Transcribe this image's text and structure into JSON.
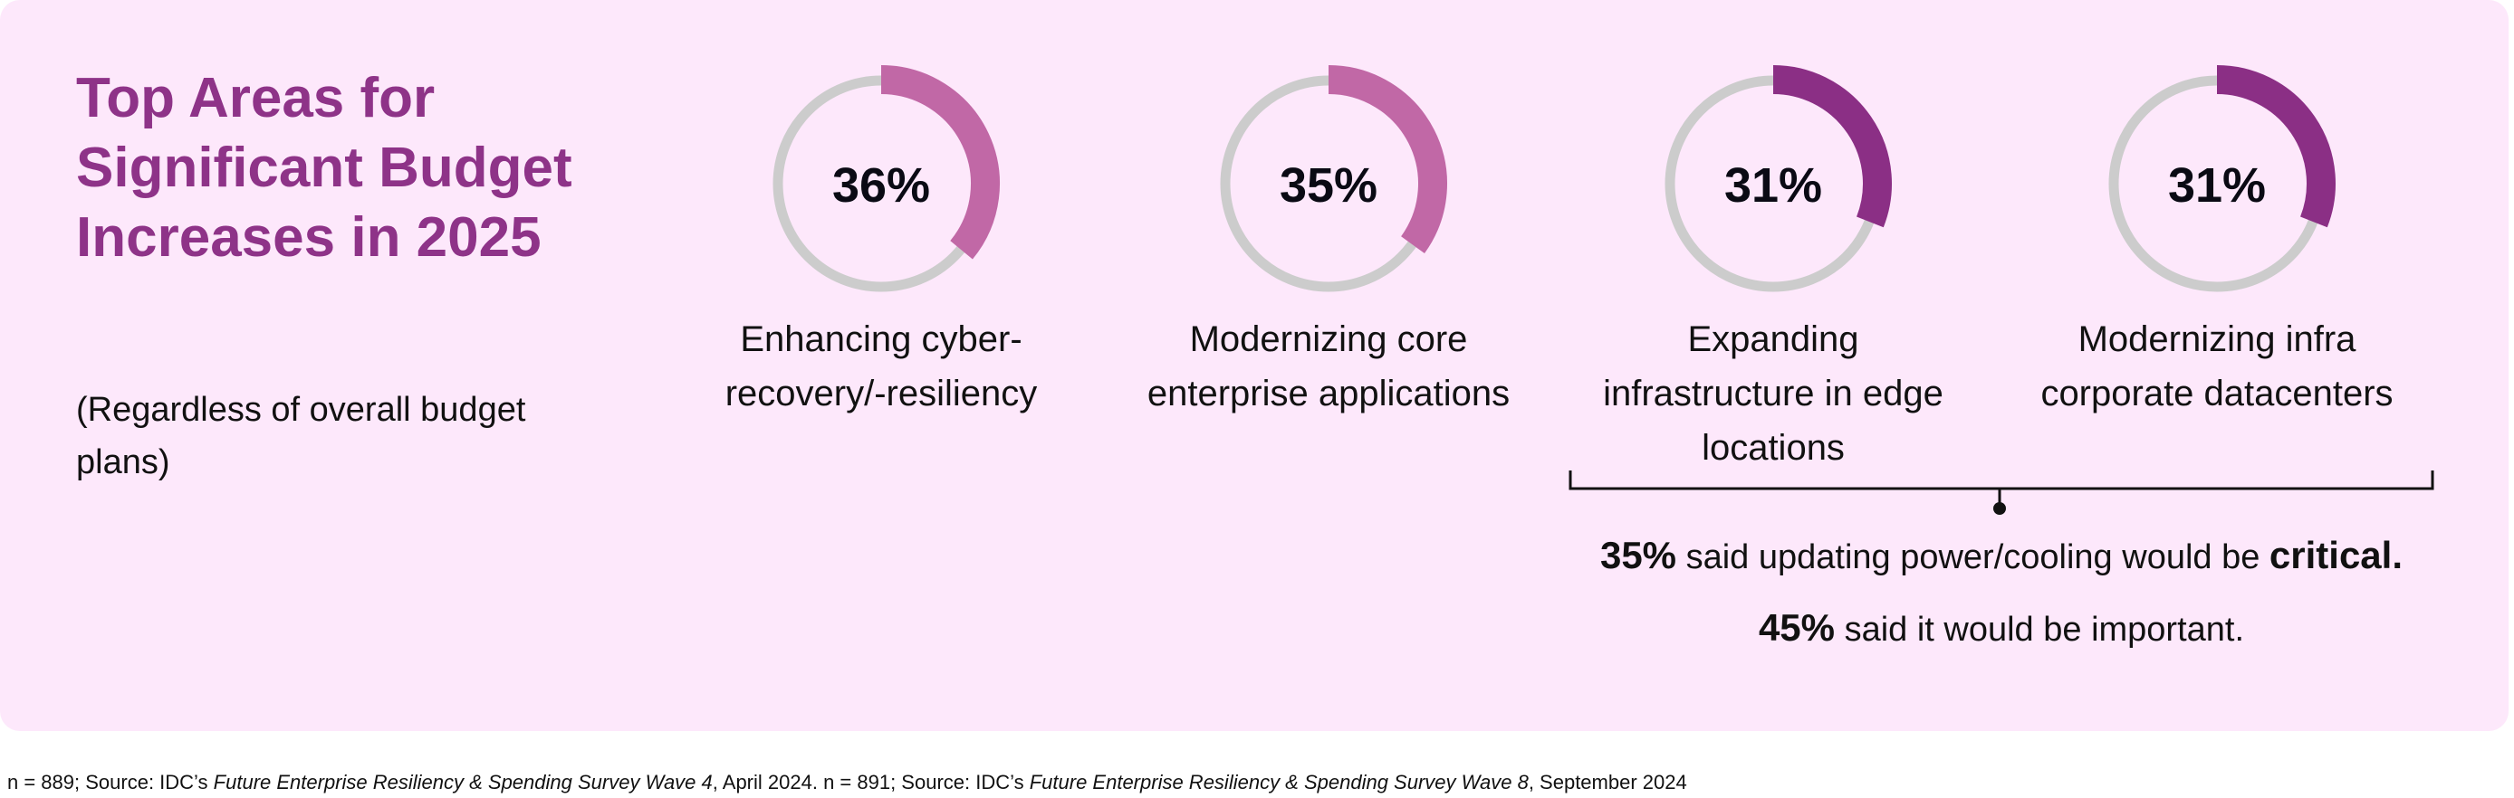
{
  "title": "Top Areas for Significant Budget Increases in 2025",
  "subtitle": "(Regardless of overall budget plans)",
  "colors": {
    "background": "#fde8fb",
    "title": "#8e3388",
    "track": "#cccccc",
    "light_arc": "#c168a6",
    "dark_arc": "#8b2f85"
  },
  "chart_data": {
    "type": "pie",
    "style": "donut-progress",
    "items": [
      {
        "value": 36,
        "display": "36%",
        "label": "Enhancing cyber-recovery/-resiliency",
        "color": "#c168a6"
      },
      {
        "value": 35,
        "display": "35%",
        "label": "Modernizing core enterprise applications",
        "color": "#c168a6"
      },
      {
        "value": 31,
        "display": "31%",
        "label": "Expanding infrastructure in edge locations",
        "color": "#8b2f85"
      },
      {
        "value": 31,
        "display": "31%",
        "label": "Modernizing infra corporate datacenters",
        "color": "#8b2f85"
      }
    ]
  },
  "note": {
    "line1_value": "35%",
    "line1_text": " said updating power/cooling would be ",
    "line1_emph": "critical.",
    "line2_value": "45%",
    "line2_text": " said it would be important."
  },
  "footer": {
    "p1": "n = 889; Source: IDC’s ",
    "p1_italic": "Future Enterprise Resiliency & Spending Survey Wave 4",
    "p2": ", April 2024. n = 891; Source: IDC’s ",
    "p2_italic": "Future Enterprise Resiliency & Spending Survey Wave 8",
    "p3": ", September 2024"
  }
}
